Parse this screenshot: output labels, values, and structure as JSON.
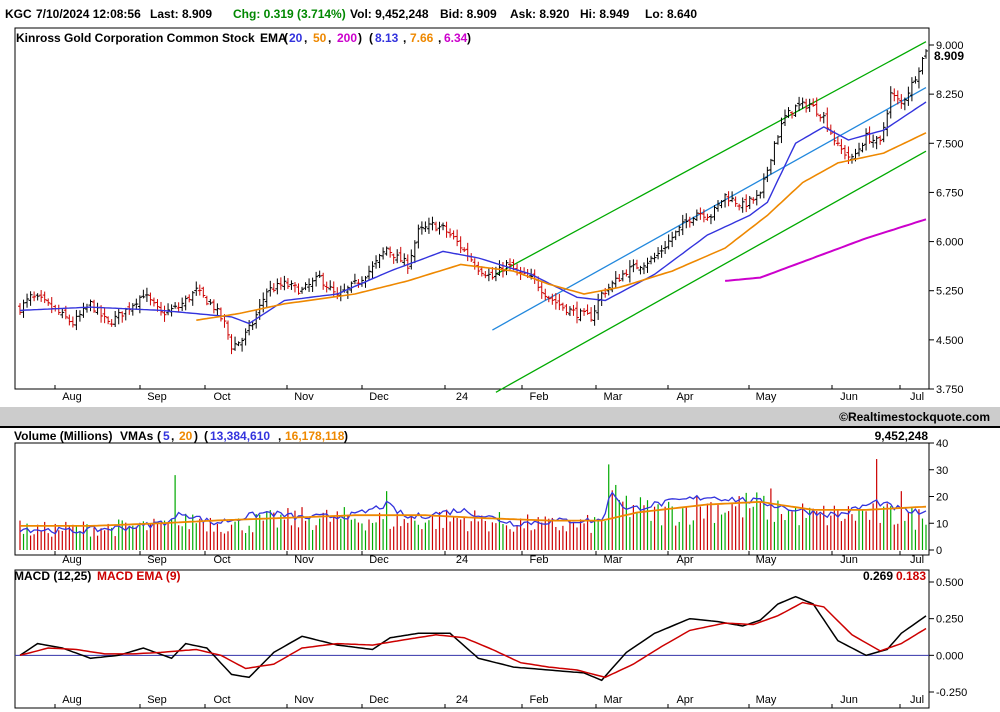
{
  "header": {
    "symbol": "KGC",
    "datetime": "7/10/2024 12:08:56",
    "last": "Last: 8.909",
    "chg": "Chg: 0.319 (3.714%)",
    "vol": "Vol: 9,452,248",
    "bid": "Bid: 8.909",
    "ask": "Ask: 8.920",
    "hi": "Hi: 8.949",
    "lo": "Lo: 8.640"
  },
  "colors": {
    "ema20": "#3333dd",
    "ema50": "#ee8800",
    "ema200": "#cc00cc",
    "channel": "#00aa00",
    "trend": "#2288dd",
    "bar_up": "#000000",
    "bar_down": "#cc0000",
    "vol_up": "#00aa00",
    "vol_down": "#cc0000",
    "macd": "#000000",
    "macd_ema": "#cc0000",
    "separator": "#cccccc"
  },
  "months": [
    {
      "label": "Aug",
      "x": 21
    },
    {
      "label": "Sep",
      "x": 42
    },
    {
      "label": "Oct",
      "x": 63
    },
    {
      "label": "Nov",
      "x": 86
    },
    {
      "label": "Dec",
      "x": 107
    },
    {
      "label": "24",
      "x": 127
    },
    {
      "label": "Feb",
      "x": 148
    },
    {
      "label": "Mar",
      "x": 169
    },
    {
      "label": "Apr",
      "x": 188
    },
    {
      "label": "May",
      "x": 210
    },
    {
      "label": "Jun",
      "x": 231
    },
    {
      "label": "Jul",
      "x": 251
    }
  ],
  "chart_data": [
    {
      "type": "ohlc",
      "title": "Kinross Gold Corporation Common Stock",
      "indicator_label": "EMA",
      "ema_periods": [
        "20",
        "50",
        "200"
      ],
      "ema_values": [
        "8.13",
        "7.66",
        "6.34"
      ],
      "last_value": "8.909",
      "ylim": [
        3.75,
        9.0
      ],
      "yticks": [
        "9.000",
        "8.250",
        "7.500",
        "6.750",
        "6.000",
        "5.250",
        "4.500",
        "3.750"
      ],
      "x_unit": "trading days (0 = first bar in July 2023, 257 = 7/10/2024)",
      "xlim": [
        0,
        257
      ],
      "close_anchors": [
        [
          0,
          4.98
        ],
        [
          3,
          5.15
        ],
        [
          6,
          5.1
        ],
        [
          10,
          4.95
        ],
        [
          15,
          4.75
        ],
        [
          20,
          5.05
        ],
        [
          25,
          4.75
        ],
        [
          30,
          4.95
        ],
        [
          35,
          5.2
        ],
        [
          40,
          4.9
        ],
        [
          45,
          5.0
        ],
        [
          50,
          5.25
        ],
        [
          55,
          5.0
        ],
        [
          58,
          4.75
        ],
        [
          60,
          4.4
        ],
        [
          63,
          4.5
        ],
        [
          66,
          4.75
        ],
        [
          70,
          5.25
        ],
        [
          75,
          5.35
        ],
        [
          80,
          5.25
        ],
        [
          85,
          5.45
        ],
        [
          90,
          5.15
        ],
        [
          95,
          5.35
        ],
        [
          100,
          5.6
        ],
        [
          104,
          5.9
        ],
        [
          107,
          5.75
        ],
        [
          110,
          5.65
        ],
        [
          113,
          6.15
        ],
        [
          117,
          6.25
        ],
        [
          120,
          6.2
        ],
        [
          123,
          6.05
        ],
        [
          127,
          5.8
        ],
        [
          130,
          5.6
        ],
        [
          134,
          5.45
        ],
        [
          138,
          5.65
        ],
        [
          142,
          5.5
        ],
        [
          146,
          5.4
        ],
        [
          150,
          5.15
        ],
        [
          154,
          5.0
        ],
        [
          158,
          4.9
        ],
        [
          162,
          4.85
        ],
        [
          165,
          5.2
        ],
        [
          168,
          5.35
        ],
        [
          172,
          5.55
        ],
        [
          176,
          5.65
        ],
        [
          180,
          5.75
        ],
        [
          184,
          6.0
        ],
        [
          188,
          6.25
        ],
        [
          192,
          6.45
        ],
        [
          196,
          6.4
        ],
        [
          200,
          6.7
        ],
        [
          205,
          6.55
        ],
        [
          210,
          6.7
        ],
        [
          214,
          7.5
        ],
        [
          217,
          7.9
        ],
        [
          220,
          8.05
        ],
        [
          224,
          8.1
        ],
        [
          228,
          7.9
        ],
        [
          232,
          7.45
        ],
        [
          236,
          7.25
        ],
        [
          240,
          7.6
        ],
        [
          244,
          7.5
        ],
        [
          247,
          8.25
        ],
        [
          250,
          8.1
        ],
        [
          253,
          8.4
        ],
        [
          257,
          8.91
        ]
      ],
      "ema20_anchors": [
        [
          0,
          4.95
        ],
        [
          20,
          5.0
        ],
        [
          40,
          4.95
        ],
        [
          60,
          4.85
        ],
        [
          65,
          4.75
        ],
        [
          75,
          5.1
        ],
        [
          90,
          5.2
        ],
        [
          105,
          5.55
        ],
        [
          120,
          5.85
        ],
        [
          130,
          5.75
        ],
        [
          145,
          5.5
        ],
        [
          158,
          5.15
        ],
        [
          166,
          5.1
        ],
        [
          180,
          5.5
        ],
        [
          195,
          6.1
        ],
        [
          207,
          6.4
        ],
        [
          212,
          6.6
        ],
        [
          220,
          7.5
        ],
        [
          228,
          7.75
        ],
        [
          235,
          7.55
        ],
        [
          245,
          7.7
        ],
        [
          257,
          8.13
        ]
      ],
      "ema50_anchors": [
        [
          50,
          4.8
        ],
        [
          62,
          4.9
        ],
        [
          75,
          5.05
        ],
        [
          95,
          5.2
        ],
        [
          110,
          5.4
        ],
        [
          125,
          5.65
        ],
        [
          140,
          5.55
        ],
        [
          150,
          5.35
        ],
        [
          160,
          5.2
        ],
        [
          170,
          5.3
        ],
        [
          185,
          5.55
        ],
        [
          200,
          5.9
        ],
        [
          212,
          6.4
        ],
        [
          222,
          6.9
        ],
        [
          232,
          7.2
        ],
        [
          245,
          7.35
        ],
        [
          257,
          7.66
        ]
      ],
      "ema200_anchors": [
        [
          200,
          5.4
        ],
        [
          210,
          5.45
        ],
        [
          225,
          5.75
        ],
        [
          240,
          6.05
        ],
        [
          257,
          6.34
        ]
      ],
      "channel_upper": [
        [
          135,
          5.5
        ],
        [
          257,
          9.05
        ]
      ],
      "channel_lower": [
        [
          135,
          3.7
        ],
        [
          257,
          7.38
        ]
      ],
      "trendline": [
        [
          134,
          4.65
        ],
        [
          257,
          8.35
        ]
      ]
    },
    {
      "type": "bar",
      "title": "Volume (Millions)",
      "indicator_label": "VMAs",
      "vma_periods": [
        "5",
        "20"
      ],
      "vma_values": [
        "13,384,610",
        "16,178,118"
      ],
      "last_value": "9,452,248",
      "ylim": [
        0,
        40
      ],
      "yticks": [
        "40",
        "30",
        "20",
        "10",
        "0"
      ],
      "x_unit": "trading days",
      "typical_anchors": [
        [
          0,
          8
        ],
        [
          15,
          9
        ],
        [
          35,
          9.5
        ],
        [
          45,
          10
        ],
        [
          50,
          13
        ],
        [
          60,
          10
        ],
        [
          70,
          12
        ],
        [
          80,
          13
        ],
        [
          95,
          13
        ],
        [
          110,
          12
        ],
        [
          125,
          13
        ],
        [
          140,
          11
        ],
        [
          155,
          10
        ],
        [
          165,
          11
        ],
        [
          168,
          20
        ],
        [
          180,
          15
        ],
        [
          195,
          18
        ],
        [
          210,
          18
        ],
        [
          225,
          14
        ],
        [
          240,
          15
        ],
        [
          257,
          13
        ]
      ],
      "spikes": [
        [
          0,
          11
        ],
        [
          44,
          28
        ],
        [
          104,
          22
        ],
        [
          167,
          32
        ],
        [
          213,
          23
        ],
        [
          243,
          34
        ],
        [
          250,
          22
        ],
        [
          257,
          9.45
        ]
      ],
      "vma5_anchors": [
        [
          0,
          8
        ],
        [
          15,
          7
        ],
        [
          35,
          9
        ],
        [
          43,
          11
        ],
        [
          46,
          14
        ],
        [
          55,
          10
        ],
        [
          70,
          14
        ],
        [
          80,
          12
        ],
        [
          95,
          13
        ],
        [
          104,
          17
        ],
        [
          110,
          12
        ],
        [
          125,
          15
        ],
        [
          140,
          10
        ],
        [
          155,
          11
        ],
        [
          165,
          11
        ],
        [
          168,
          22
        ],
        [
          172,
          15
        ],
        [
          180,
          17
        ],
        [
          195,
          20
        ],
        [
          210,
          18
        ],
        [
          220,
          15
        ],
        [
          232,
          13
        ],
        [
          243,
          18
        ],
        [
          250,
          15
        ],
        [
          257,
          13.4
        ]
      ],
      "vma20_anchors": [
        [
          0,
          9
        ],
        [
          20,
          9
        ],
        [
          40,
          10
        ],
        [
          55,
          11
        ],
        [
          75,
          12
        ],
        [
          95,
          13
        ],
        [
          115,
          13
        ],
        [
          130,
          12
        ],
        [
          150,
          11
        ],
        [
          165,
          11
        ],
        [
          175,
          14
        ],
        [
          195,
          17
        ],
        [
          210,
          18
        ],
        [
          225,
          15
        ],
        [
          240,
          15
        ],
        [
          257,
          16.2
        ]
      ]
    },
    {
      "type": "line",
      "title": "MACD (12,25)",
      "signal_label": "MACD EMA (9)",
      "last_macd": "0.269",
      "last_signal": "0.183",
      "ylim": [
        -0.25,
        0.5
      ],
      "yticks": [
        "0.500",
        "0.250",
        "0.000",
        "-0.250"
      ],
      "x_unit": "trading days",
      "macd_anchors": [
        [
          0,
          0.0
        ],
        [
          5,
          0.08
        ],
        [
          12,
          0.05
        ],
        [
          20,
          -0.02
        ],
        [
          28,
          0.0
        ],
        [
          35,
          0.05
        ],
        [
          43,
          -0.02
        ],
        [
          47,
          0.08
        ],
        [
          53,
          0.05
        ],
        [
          60,
          -0.13
        ],
        [
          65,
          -0.15
        ],
        [
          72,
          0.02
        ],
        [
          80,
          0.13
        ],
        [
          90,
          0.07
        ],
        [
          100,
          0.04
        ],
        [
          105,
          0.12
        ],
        [
          113,
          0.15
        ],
        [
          122,
          0.15
        ],
        [
          130,
          -0.02
        ],
        [
          140,
          -0.08
        ],
        [
          150,
          -0.1
        ],
        [
          160,
          -0.12
        ],
        [
          165,
          -0.17
        ],
        [
          172,
          0.02
        ],
        [
          180,
          0.15
        ],
        [
          190,
          0.25
        ],
        [
          198,
          0.23
        ],
        [
          205,
          0.2
        ],
        [
          210,
          0.24
        ],
        [
          215,
          0.35
        ],
        [
          220,
          0.4
        ],
        [
          225,
          0.35
        ],
        [
          232,
          0.1
        ],
        [
          240,
          0.0
        ],
        [
          246,
          0.04
        ],
        [
          250,
          0.15
        ],
        [
          257,
          0.269
        ]
      ],
      "signal_anchors": [
        [
          0,
          0.0
        ],
        [
          8,
          0.05
        ],
        [
          16,
          0.04
        ],
        [
          24,
          0.01
        ],
        [
          32,
          0.01
        ],
        [
          40,
          0.02
        ],
        [
          50,
          0.04
        ],
        [
          57,
          0.0
        ],
        [
          64,
          -0.09
        ],
        [
          72,
          -0.06
        ],
        [
          80,
          0.05
        ],
        [
          90,
          0.08
        ],
        [
          100,
          0.07
        ],
        [
          110,
          0.11
        ],
        [
          118,
          0.14
        ],
        [
          126,
          0.12
        ],
        [
          134,
          0.04
        ],
        [
          142,
          -0.05
        ],
        [
          150,
          -0.08
        ],
        [
          158,
          -0.1
        ],
        [
          166,
          -0.15
        ],
        [
          174,
          -0.06
        ],
        [
          182,
          0.06
        ],
        [
          190,
          0.17
        ],
        [
          200,
          0.22
        ],
        [
          208,
          0.21
        ],
        [
          215,
          0.27
        ],
        [
          222,
          0.36
        ],
        [
          228,
          0.33
        ],
        [
          236,
          0.14
        ],
        [
          244,
          0.03
        ],
        [
          250,
          0.08
        ],
        [
          257,
          0.183
        ]
      ]
    }
  ],
  "watermark": "©Realtimestockquote.com"
}
